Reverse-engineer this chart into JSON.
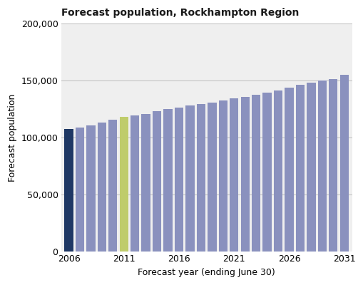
{
  "years": [
    2006,
    2007,
    2008,
    2009,
    2010,
    2011,
    2012,
    2013,
    2014,
    2015,
    2016,
    2017,
    2018,
    2019,
    2020,
    2021,
    2022,
    2023,
    2024,
    2025,
    2026,
    2027,
    2028,
    2029,
    2030,
    2031
  ],
  "values": [
    107500,
    109000,
    111000,
    113500,
    115500,
    118500,
    119500,
    121000,
    123000,
    125000,
    126500,
    128000,
    129500,
    131000,
    132500,
    134500,
    136000,
    137500,
    139500,
    141500,
    144000,
    146500,
    148000,
    150000,
    151500,
    155000
  ],
  "bar_colors_key": {
    "dark_blue": "#1F3864",
    "steel_blue": "#8A91BE",
    "yellow_green": "#BFCC6B"
  },
  "title": "Forecast population, Rockhampton Region",
  "xlabel": "Forecast year (ending June 30)",
  "ylabel": "Forecast population",
  "ylim": [
    0,
    200000
  ],
  "yticks": [
    0,
    50000,
    100000,
    150000,
    200000
  ],
  "xticks": [
    2006,
    2011,
    2016,
    2021,
    2026,
    2031
  ],
  "plot_bg": "#EFEFEF",
  "grid_color": "#BBBBBB",
  "title_fontsize": 10,
  "axis_fontsize": 9,
  "tick_fontsize": 9
}
